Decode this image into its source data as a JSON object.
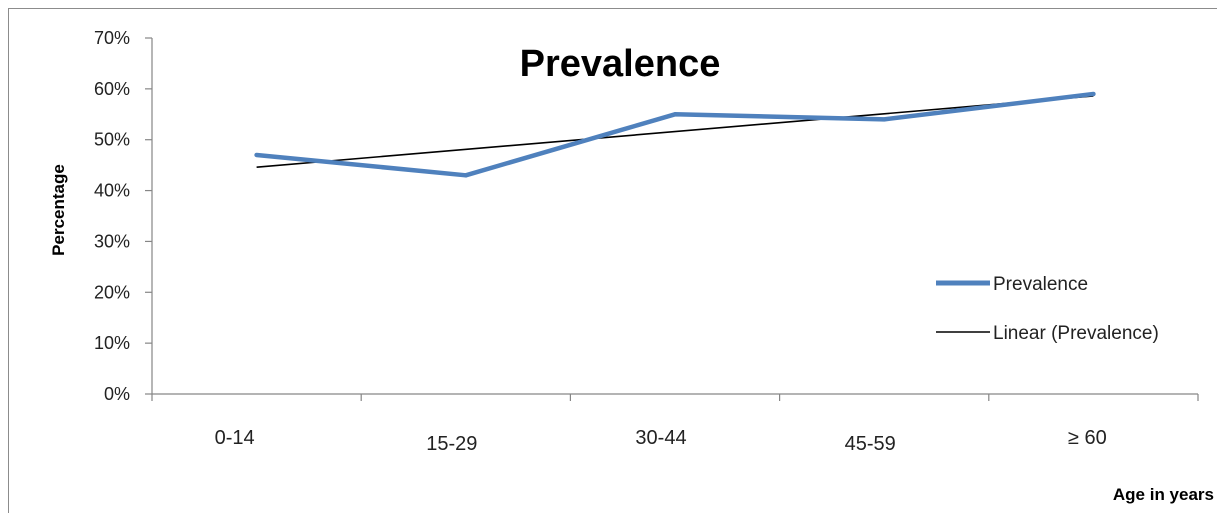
{
  "chart_data": {
    "type": "line",
    "title": "Prevalence",
    "xlabel": "Age in years",
    "ylabel": "Percentage",
    "categories": [
      "0-14",
      "15-29",
      "30-44",
      "45-59",
      "≥ 60"
    ],
    "ylim": [
      0,
      0.7
    ],
    "yticks": [
      0,
      0.1,
      0.2,
      0.3,
      0.4,
      0.5,
      0.6,
      0.7
    ],
    "ytick_labels": [
      "0%",
      "10%",
      "20%",
      "30%",
      "40%",
      "50%",
      "60%",
      "70%"
    ],
    "series": [
      {
        "name": "Prevalence",
        "values": [
          0.47,
          0.43,
          0.55,
          0.54,
          0.59
        ],
        "color": "#4f81bd"
      }
    ],
    "trendline": {
      "name": "Linear (Prevalence)",
      "type": "linear",
      "of_series": "Prevalence",
      "color": "#000000"
    },
    "legend_position": "right",
    "grid": false
  }
}
